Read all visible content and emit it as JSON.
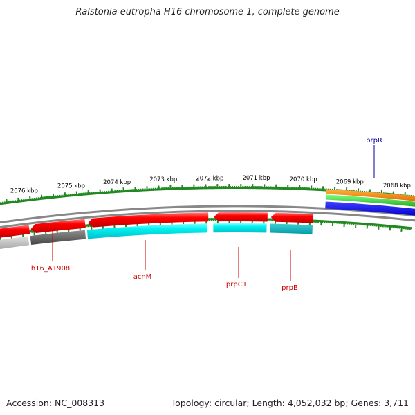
{
  "title": "Ralstonia eutropha H16 chromosome 1, complete genome",
  "footer": {
    "accession": "Accession: NC_008313",
    "topology": "Topology: circular; Length: 4,052,032 bp; Genes: 3,711"
  },
  "scale": {
    "labels": [
      "2076 kbp",
      "2075 kbp",
      "2074 kbp",
      "2073 kbp",
      "2072 kbp",
      "2071 kbp",
      "2070 kbp",
      "2069 kbp",
      "2068 kbp"
    ],
    "tick_color": "#228822"
  },
  "genes": [
    {
      "name": "h16_A1908",
      "color": "#cc0000"
    },
    {
      "name": "acnM",
      "color": "#cc0000"
    },
    {
      "name": "prpC1",
      "color": "#cc0000"
    },
    {
      "name": "prpB",
      "color": "#cc0000"
    },
    {
      "name": "prpR",
      "color": "#000099"
    }
  ],
  "colors": {
    "gene_red": "#ff0000",
    "match_cyan": "#00e0e0",
    "match_grey": "#666666",
    "backbone": "#888888",
    "track_orange": "#ff8800",
    "track_green": "#33cc33",
    "track_blue": "#0000ee"
  }
}
